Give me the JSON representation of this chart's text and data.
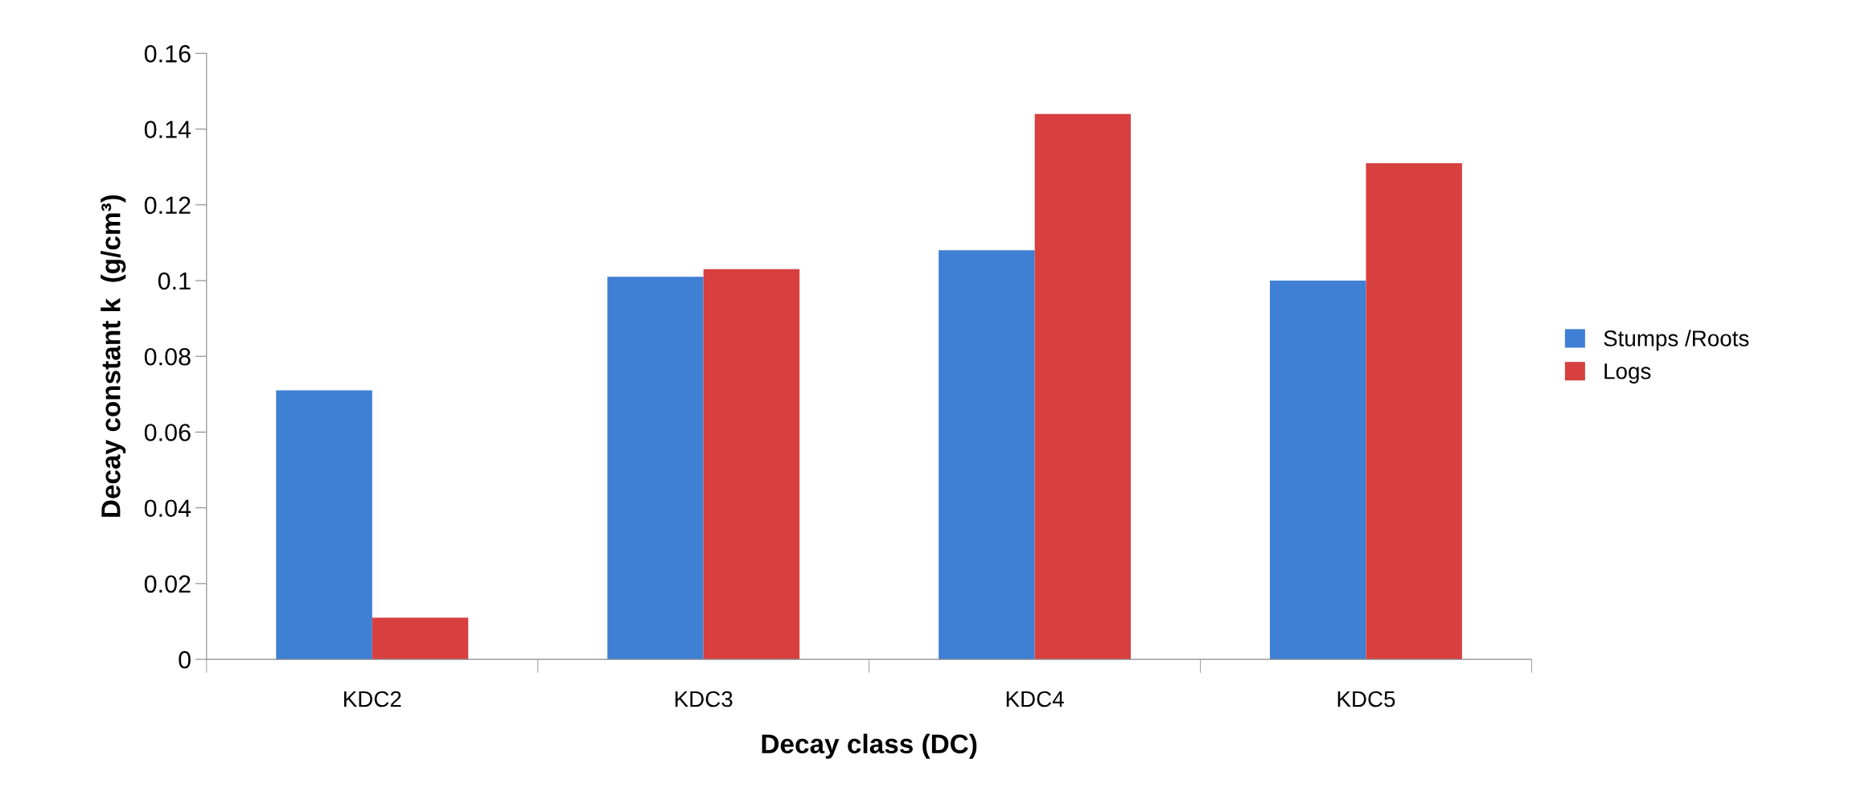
{
  "chart_data": {
    "type": "bar",
    "xlabel": "Decay class (DC)",
    "ylabel": "Decay constant k  (g/cm³)",
    "categories": [
      "KDC2",
      "KDC3",
      "KDC4",
      "KDC5"
    ],
    "series": [
      {
        "name": "Stumps /Roots",
        "color": "#3f7fd4",
        "values": [
          0.071,
          0.101,
          0.108,
          0.1
        ]
      },
      {
        "name": "Logs",
        "color": "#d84040",
        "values": [
          0.011,
          0.103,
          0.144,
          0.131
        ]
      }
    ],
    "ylim": [
      0,
      0.16
    ],
    "yticks": [
      {
        "value": 0,
        "label": "0"
      },
      0.02,
      0.04,
      0.06,
      0.08,
      {
        "value": 0.1,
        "label": "0.1"
      },
      0.12,
      0.14,
      0.16
    ],
    "grid": false,
    "legend": "right"
  }
}
